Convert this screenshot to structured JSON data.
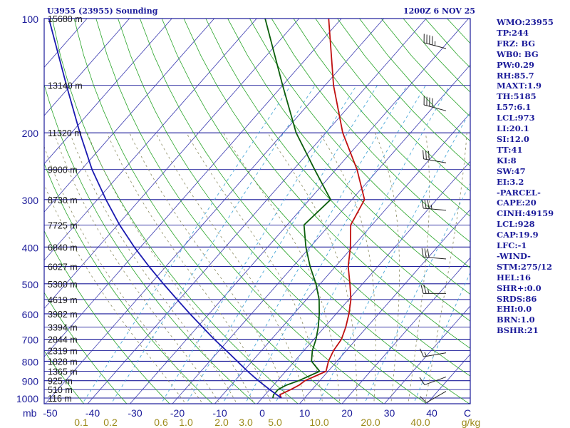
{
  "chart_data": {
    "type": "line",
    "title": "U3955 (23955) Sounding",
    "valid_time": "1200Z  6 NOV 25",
    "pressure_axis_label": "mb",
    "pressure_levels": [
      100,
      200,
      300,
      400,
      500,
      600,
      700,
      800,
      900,
      1000
    ],
    "temp_axis_label": "C",
    "temp_ticks": [
      -50,
      -40,
      -30,
      -20,
      -10,
      0,
      10,
      20,
      30,
      40
    ],
    "mixing_ratio_label": "g/kg",
    "mixing_ratio_ticks": [
      "0.1",
      "0.2",
      "0.6",
      "1.0",
      "2.0",
      "3.0",
      "5.0",
      "10.0",
      "20.0",
      "40.0"
    ],
    "height_labels": [
      {
        "p": 100,
        "text": "15680 m"
      },
      {
        "p": 150,
        "text": "13140 m"
      },
      {
        "p": 200,
        "text": "11320 m"
      },
      {
        "p": 250,
        "text": "9900 m"
      },
      {
        "p": 300,
        "text": "8730 m"
      },
      {
        "p": 350,
        "text": "7725 m"
      },
      {
        "p": 400,
        "text": "6840 m"
      },
      {
        "p": 450,
        "text": "6027 m"
      },
      {
        "p": 500,
        "text": "5300 m"
      },
      {
        "p": 550,
        "text": "4619 m"
      },
      {
        "p": 600,
        "text": "3982 m"
      },
      {
        "p": 650,
        "text": "3394 m"
      },
      {
        "p": 700,
        "text": "2844 m"
      },
      {
        "p": 750,
        "text": "2319 m"
      },
      {
        "p": 800,
        "text": "1828 m"
      },
      {
        "p": 850,
        "text": "1365 m"
      },
      {
        "p": 900,
        "text": "925 m"
      },
      {
        "p": 950,
        "text": "510 m"
      },
      {
        "p": 1000,
        "text": "116 m"
      }
    ],
    "series": [
      {
        "name": "temperature",
        "color": "#c01010",
        "points": [
          [
            1000,
            4.5
          ],
          [
            980,
            3.5
          ],
          [
            950,
            5.0
          ],
          [
            925,
            6.0
          ],
          [
            900,
            6.5
          ],
          [
            850,
            9.5
          ],
          [
            800,
            8.0
          ],
          [
            750,
            7.0
          ],
          [
            700,
            6.5
          ],
          [
            650,
            5.0
          ],
          [
            600,
            3.0
          ],
          [
            550,
            0.5
          ],
          [
            500,
            -3.0
          ],
          [
            450,
            -7.0
          ],
          [
            400,
            -10.5
          ],
          [
            350,
            -15.0
          ],
          [
            300,
            -17.0
          ],
          [
            250,
            -25.0
          ],
          [
            200,
            -36.0
          ],
          [
            150,
            -48.0
          ],
          [
            100,
            -63.0
          ]
        ]
      },
      {
        "name": "dewpoint",
        "color": "#0b5e0b",
        "points": [
          [
            1000,
            2.5
          ],
          [
            980,
            2.0
          ],
          [
            950,
            2.0
          ],
          [
            925,
            3.0
          ],
          [
            900,
            5.0
          ],
          [
            850,
            8.0
          ],
          [
            800,
            4.0
          ],
          [
            750,
            2.0
          ],
          [
            700,
            0.5
          ],
          [
            650,
            -1.5
          ],
          [
            600,
            -4.0
          ],
          [
            550,
            -7.0
          ],
          [
            500,
            -11.0
          ],
          [
            450,
            -16.0
          ],
          [
            400,
            -21.0
          ],
          [
            350,
            -26.0
          ],
          [
            300,
            -25.0
          ],
          [
            250,
            -35.0
          ],
          [
            200,
            -47.0
          ],
          [
            150,
            -60.0
          ],
          [
            100,
            -78.0
          ]
        ]
      },
      {
        "name": "parcel",
        "color": "#1a1ab0",
        "points": [
          [
            1000,
            4.5
          ],
          [
            950,
            0.0
          ],
          [
            900,
            -4.5
          ],
          [
            850,
            -9.0
          ],
          [
            800,
            -13.5
          ],
          [
            750,
            -18.3
          ],
          [
            700,
            -23.5
          ],
          [
            650,
            -28.8
          ],
          [
            600,
            -34.5
          ],
          [
            550,
            -40.5
          ],
          [
            500,
            -47.0
          ],
          [
            450,
            -54.0
          ],
          [
            400,
            -61.5
          ],
          [
            350,
            -69.5
          ],
          [
            300,
            -78.0
          ],
          [
            250,
            -87.5
          ],
          [
            200,
            -98.0
          ],
          [
            150,
            -111.0
          ],
          [
            100,
            -129.0
          ]
        ]
      }
    ],
    "wind_barbs": [
      {
        "p": 120,
        "dir": 285,
        "speed": 45
      },
      {
        "p": 175,
        "dir": 285,
        "speed": 40
      },
      {
        "p": 240,
        "dir": 280,
        "speed": 30
      },
      {
        "p": 320,
        "dir": 275,
        "speed": 35
      },
      {
        "p": 430,
        "dir": 275,
        "speed": 30
      },
      {
        "p": 530,
        "dir": 270,
        "speed": 25
      },
      {
        "p": 760,
        "dir": 260,
        "speed": 15
      },
      {
        "p": 880,
        "dir": 250,
        "speed": 10
      },
      {
        "p": 960,
        "dir": 240,
        "speed": 10
      }
    ]
  },
  "indices": [
    "WMO:23955",
    "TP:244",
    "FRZ: BG",
    "WB0: BG",
    "PW:0.29",
    "RH:85.7",
    "MAXT:1.9",
    "TH:5185",
    "L57:6.1",
    "LCL:973",
    "LI:20.1",
    "SI:12.0",
    "TT:41",
    "KI:8",
    "SW:47",
    "EI:3.2",
    "-PARCEL-",
    "CAPE:20",
    "CINH:49159",
    "LCL:928",
    "CAP:19.9",
    "LFC:-1",
    "-WIND-",
    "STM:275/12",
    "HEL:16",
    "SHR+:0.0",
    "SRDS:86",
    "EHI:0.0",
    "BRN:1.0",
    "BSHR:21"
  ],
  "colors": {
    "frame": "#1b1b9a",
    "isobar": "#1b1b9a",
    "isotherm": "#3a3ab0",
    "dry_adiabat": "#2aa52a",
    "moist_adiabat": "#8a8a60",
    "mixing_ratio": "#4aa8d8",
    "axis_text": "#1b1b9a",
    "mixing_text": "#9c8a1a"
  }
}
